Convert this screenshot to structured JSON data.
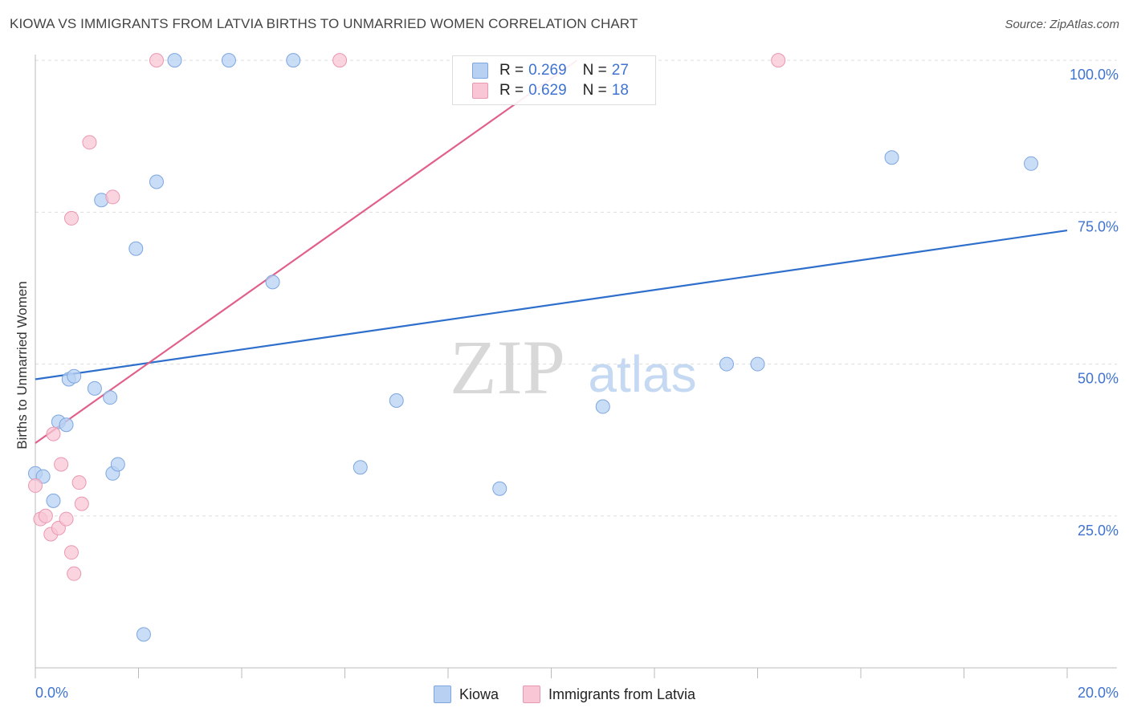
{
  "header": {
    "title": "KIOWA VS IMMIGRANTS FROM LATVIA BIRTHS TO UNMARRIED WOMEN CORRELATION CHART",
    "source": "Source: ZipAtlas.com"
  },
  "watermark": {
    "zip": "ZIP",
    "atlas": "atlas"
  },
  "legend": {
    "rows": [
      {
        "r_label": "R = ",
        "r_value": "0.269",
        "n_label": "N = ",
        "n_value": "27"
      },
      {
        "r_label": "R = ",
        "r_value": "0.629",
        "n_label": "N = ",
        "n_value": "18"
      }
    ]
  },
  "bottom_legend": {
    "kiowa": "Kiowa",
    "latvia": "Immigrants from Latvia"
  },
  "colors": {
    "kiowa_fill": "#b8d1f3",
    "kiowa_stroke": "#7da6e0",
    "kiowa_line": "#2f6fcc",
    "latvia_fill": "#f8c6d4",
    "latvia_stroke": "#ea98b0",
    "latvia_line": "#e0608a",
    "tick_label": "#3f73d1",
    "grid": "#dddddd"
  },
  "chart_data": {
    "type": "scatter",
    "title": "KIOWA VS IMMIGRANTS FROM LATVIA BIRTHS TO UNMARRIED WOMEN CORRELATION CHART",
    "xlabel": "",
    "ylabel": "Births to Unmarried Women",
    "xlim": [
      0,
      20
    ],
    "ylim": [
      0,
      102
    ],
    "x_tick_labels": [
      {
        "value": 0,
        "label": "0.0%"
      },
      {
        "value": 20,
        "label": "20.0%"
      }
    ],
    "y_tick_labels": [
      {
        "value": 25,
        "label": "25.0%"
      },
      {
        "value": 50,
        "label": "50.0%"
      },
      {
        "value": 75,
        "label": "75.0%"
      },
      {
        "value": 100,
        "label": "100.0%"
      }
    ],
    "series": [
      {
        "name": "Kiowa",
        "r": 0.269,
        "n": 27,
        "points": [
          [
            0.0,
            32.0
          ],
          [
            0.15,
            31.5
          ],
          [
            0.35,
            27.5
          ],
          [
            0.45,
            40.5
          ],
          [
            0.6,
            40.0
          ],
          [
            0.65,
            47.5
          ],
          [
            0.75,
            48.0
          ],
          [
            1.15,
            46.0
          ],
          [
            1.28,
            77.0
          ],
          [
            1.45,
            44.5
          ],
          [
            1.5,
            32.0
          ],
          [
            1.6,
            33.5
          ],
          [
            1.95,
            69.0
          ],
          [
            2.1,
            5.5
          ],
          [
            2.35,
            80.0
          ],
          [
            2.7,
            100.0
          ],
          [
            3.75,
            100.0
          ],
          [
            4.6,
            63.5
          ],
          [
            5.0,
            100.0
          ],
          [
            6.3,
            33.0
          ],
          [
            7.0,
            44.0
          ],
          [
            9.0,
            29.5
          ],
          [
            11.0,
            43.0
          ],
          [
            13.4,
            50.0
          ],
          [
            14.0,
            50.0
          ],
          [
            16.6,
            84.0
          ],
          [
            19.3,
            83.0
          ]
        ],
        "trend": {
          "x": [
            0,
            20
          ],
          "y": [
            47.5,
            72.0
          ]
        }
      },
      {
        "name": "Immigrants from Latvia",
        "r": 0.629,
        "n": 18,
        "points": [
          [
            0.0,
            30.0
          ],
          [
            0.1,
            24.5
          ],
          [
            0.2,
            25.0
          ],
          [
            0.3,
            22.0
          ],
          [
            0.35,
            38.5
          ],
          [
            0.45,
            23.0
          ],
          [
            0.5,
            33.5
          ],
          [
            0.6,
            24.5
          ],
          [
            0.7,
            74.0
          ],
          [
            0.7,
            19.0
          ],
          [
            0.75,
            15.5
          ],
          [
            0.85,
            30.5
          ],
          [
            0.9,
            27.0
          ],
          [
            1.05,
            86.5
          ],
          [
            1.5,
            77.5
          ],
          [
            2.35,
            100.0
          ],
          [
            5.9,
            100.0
          ],
          [
            14.4,
            100.0
          ]
        ],
        "trend": {
          "x": [
            0,
            10.5
          ],
          "y": [
            37.0,
            100.0
          ]
        }
      }
    ]
  }
}
